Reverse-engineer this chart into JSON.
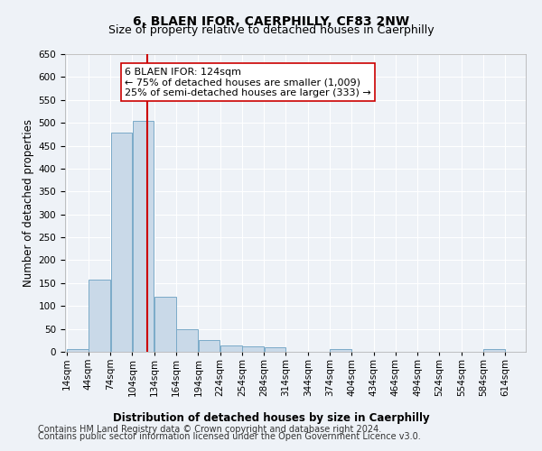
{
  "title": "6, BLAEN IFOR, CAERPHILLY, CF83 2NW",
  "subtitle": "Size of property relative to detached houses in Caerphilly",
  "xlabel": "Distribution of detached houses by size in Caerphilly",
  "ylabel": "Number of detached properties",
  "bin_edges": [
    14,
    44,
    74,
    104,
    134,
    164,
    194,
    224,
    254,
    284,
    314,
    344,
    374,
    404,
    434,
    464,
    494,
    524,
    554,
    584,
    614
  ],
  "bar_heights": [
    5,
    158,
    478,
    505,
    120,
    50,
    25,
    14,
    12,
    9,
    0,
    0,
    5,
    0,
    0,
    0,
    0,
    0,
    0,
    5
  ],
  "bar_color": "#c9d9e8",
  "bar_edge_color": "#7aaac8",
  "property_size": 124,
  "vline_color": "#cc0000",
  "ylim": [
    0,
    650
  ],
  "yticks": [
    0,
    50,
    100,
    150,
    200,
    250,
    300,
    350,
    400,
    450,
    500,
    550,
    600,
    650
  ],
  "annotation_box_text": "6 BLAEN IFOR: 124sqm\n← 75% of detached houses are smaller (1,009)\n25% of semi-detached houses are larger (333) →",
  "annotation_box_color": "#ffffff",
  "annotation_box_edgecolor": "#cc0000",
  "footer_line1": "Contains HM Land Registry data © Crown copyright and database right 2024.",
  "footer_line2": "Contains public sector information licensed under the Open Government Licence v3.0.",
  "background_color": "#eef2f7",
  "grid_color": "#ffffff",
  "title_fontsize": 10,
  "subtitle_fontsize": 9,
  "axis_label_fontsize": 8.5,
  "tick_fontsize": 7.5,
  "annotation_fontsize": 8,
  "footer_fontsize": 7
}
